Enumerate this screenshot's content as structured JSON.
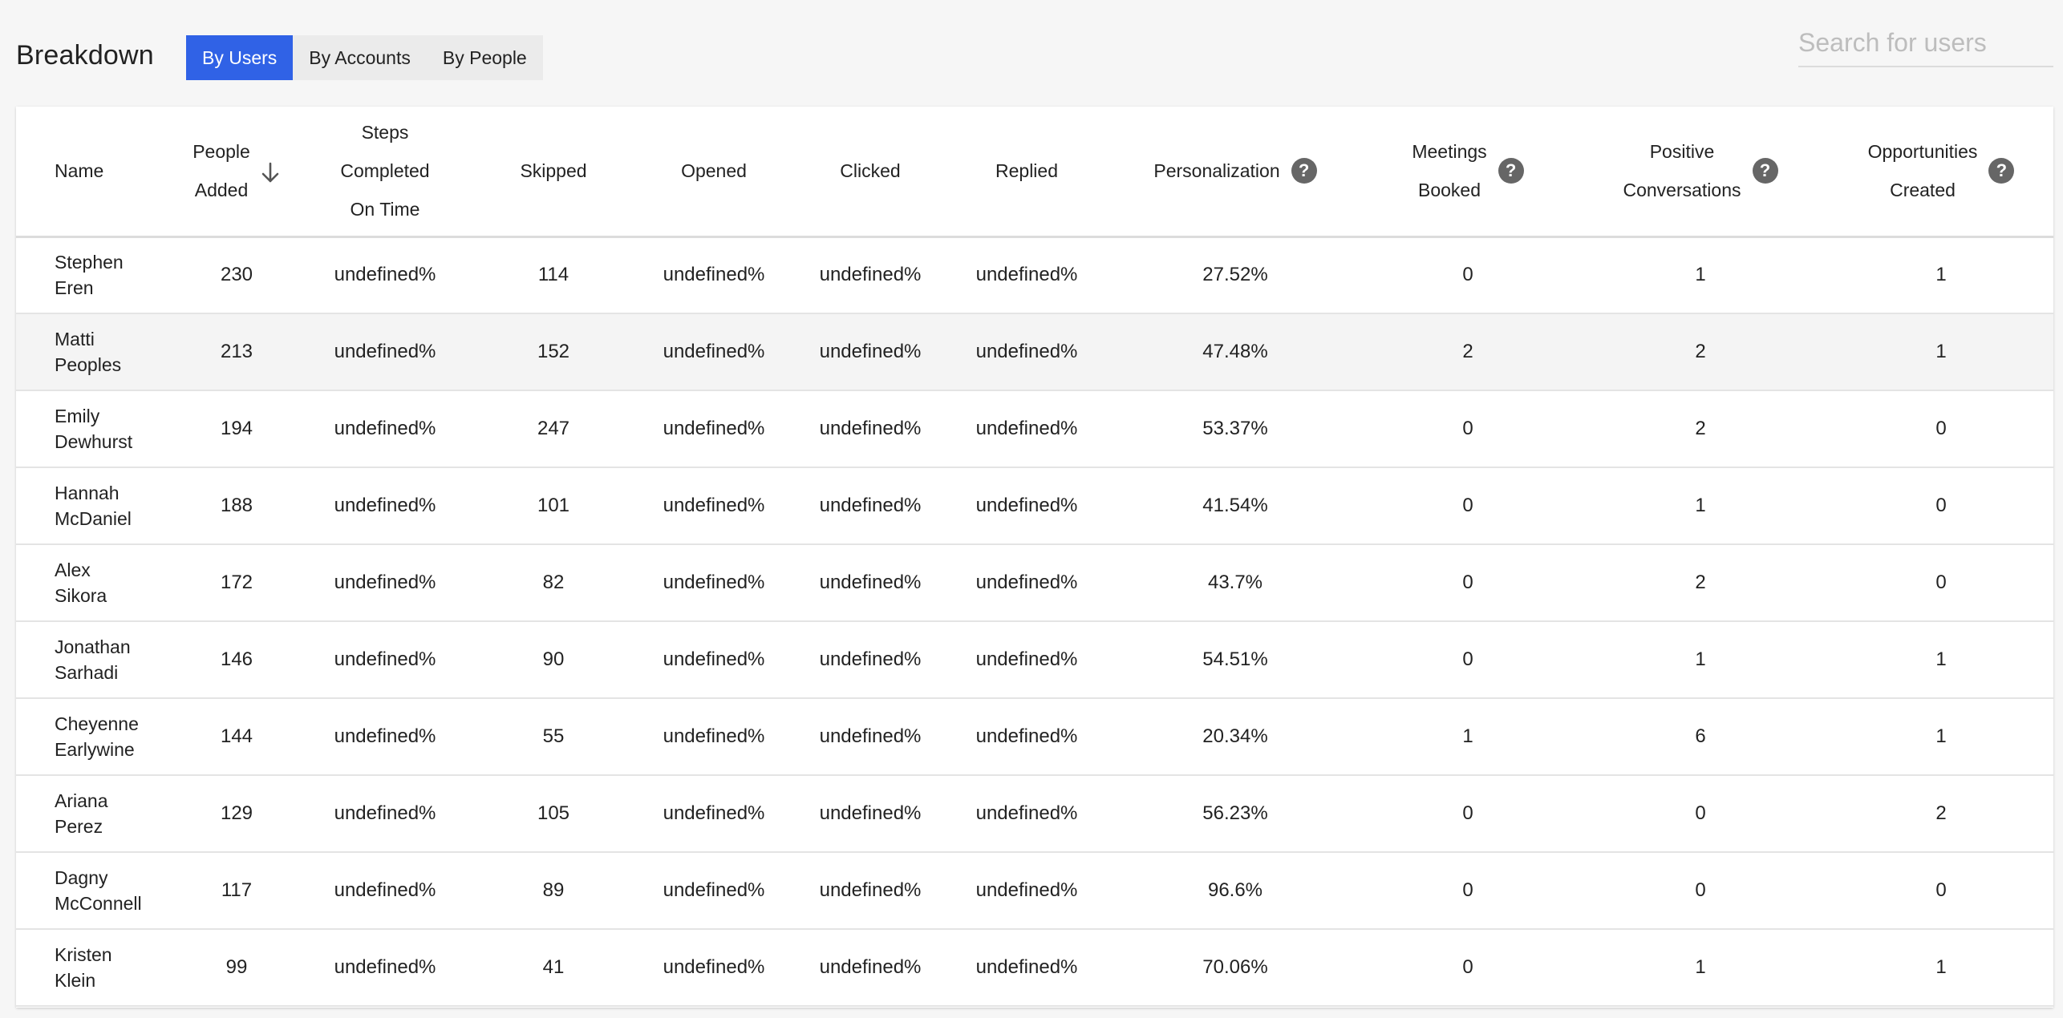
{
  "header": {
    "title": "Breakdown",
    "tabs": [
      {
        "label": "By Users",
        "active": true
      },
      {
        "label": "By Accounts",
        "active": false
      },
      {
        "label": "By People",
        "active": false
      }
    ],
    "search_placeholder": "Search for users"
  },
  "table": {
    "columns": [
      {
        "key": "name",
        "lines": [
          "Name"
        ],
        "help": false
      },
      {
        "key": "people_added",
        "lines": [
          "People",
          "Added"
        ],
        "help": false,
        "sorted": "desc"
      },
      {
        "key": "steps",
        "lines": [
          "Steps",
          "Completed",
          "On Time"
        ],
        "help": false
      },
      {
        "key": "skipped",
        "lines": [
          "Skipped"
        ],
        "help": false
      },
      {
        "key": "opened",
        "lines": [
          "Opened"
        ],
        "help": false
      },
      {
        "key": "clicked",
        "lines": [
          "Clicked"
        ],
        "help": false
      },
      {
        "key": "replied",
        "lines": [
          "Replied"
        ],
        "help": false
      },
      {
        "key": "personalization",
        "lines": [
          "Personalization"
        ],
        "help": true
      },
      {
        "key": "meetings",
        "lines": [
          "Meetings",
          "Booked"
        ],
        "help": true
      },
      {
        "key": "positive",
        "lines": [
          "Positive",
          "Conversations"
        ],
        "help": true
      },
      {
        "key": "opportunities",
        "lines": [
          "Opportunities",
          "Created"
        ],
        "help": true
      }
    ],
    "help_glyph": "?",
    "sort_icon": "arrow-down-icon",
    "rows": [
      {
        "first": "Stephen",
        "last": "Eren",
        "people_added": "230",
        "steps": "undefined%",
        "skipped": "114",
        "opened": "undefined%",
        "clicked": "undefined%",
        "replied": "undefined%",
        "personalization": "27.52%",
        "meetings": "0",
        "positive": "1",
        "opportunities": "1"
      },
      {
        "first": "Matti",
        "last": "Peoples",
        "people_added": "213",
        "steps": "undefined%",
        "skipped": "152",
        "opened": "undefined%",
        "clicked": "undefined%",
        "replied": "undefined%",
        "personalization": "47.48%",
        "meetings": "2",
        "positive": "2",
        "opportunities": "1",
        "hover": true
      },
      {
        "first": "Emily",
        "last": "Dewhurst",
        "people_added": "194",
        "steps": "undefined%",
        "skipped": "247",
        "opened": "undefined%",
        "clicked": "undefined%",
        "replied": "undefined%",
        "personalization": "53.37%",
        "meetings": "0",
        "positive": "2",
        "opportunities": "0"
      },
      {
        "first": "Hannah",
        "last": "McDaniel",
        "people_added": "188",
        "steps": "undefined%",
        "skipped": "101",
        "opened": "undefined%",
        "clicked": "undefined%",
        "replied": "undefined%",
        "personalization": "41.54%",
        "meetings": "0",
        "positive": "1",
        "opportunities": "0"
      },
      {
        "first": "Alex",
        "last": "Sikora",
        "people_added": "172",
        "steps": "undefined%",
        "skipped": "82",
        "opened": "undefined%",
        "clicked": "undefined%",
        "replied": "undefined%",
        "personalization": "43.7%",
        "meetings": "0",
        "positive": "2",
        "opportunities": "0"
      },
      {
        "first": "Jonathan",
        "last": "Sarhadi",
        "people_added": "146",
        "steps": "undefined%",
        "skipped": "90",
        "opened": "undefined%",
        "clicked": "undefined%",
        "replied": "undefined%",
        "personalization": "54.51%",
        "meetings": "0",
        "positive": "1",
        "opportunities": "1"
      },
      {
        "first": "Cheyenne",
        "last": "Earlywine",
        "people_added": "144",
        "steps": "undefined%",
        "skipped": "55",
        "opened": "undefined%",
        "clicked": "undefined%",
        "replied": "undefined%",
        "personalization": "20.34%",
        "meetings": "1",
        "positive": "6",
        "opportunities": "1"
      },
      {
        "first": "Ariana",
        "last": "Perez",
        "people_added": "129",
        "steps": "undefined%",
        "skipped": "105",
        "opened": "undefined%",
        "clicked": "undefined%",
        "replied": "undefined%",
        "personalization": "56.23%",
        "meetings": "0",
        "positive": "0",
        "opportunities": "2"
      },
      {
        "first": "Dagny",
        "last": "McConnell",
        "people_added": "117",
        "steps": "undefined%",
        "skipped": "89",
        "opened": "undefined%",
        "clicked": "undefined%",
        "replied": "undefined%",
        "personalization": "96.6%",
        "meetings": "0",
        "positive": "0",
        "opportunities": "0"
      },
      {
        "first": "Kristen",
        "last": "Klein",
        "people_added": "99",
        "steps": "undefined%",
        "skipped": "41",
        "opened": "undefined%",
        "clicked": "undefined%",
        "replied": "undefined%",
        "personalization": "70.06%",
        "meetings": "0",
        "positive": "1",
        "opportunities": "1"
      }
    ]
  },
  "colors": {
    "accent": "#3062e6",
    "help_icon": "#666666",
    "row_hover": "#f4f4f4"
  }
}
